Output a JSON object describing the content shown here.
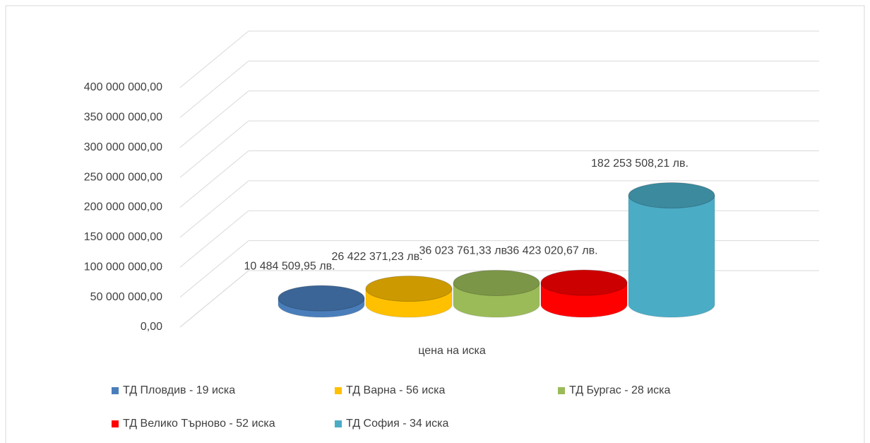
{
  "chart_data": {
    "type": "bar3d",
    "categories": [
      "цена на иска"
    ],
    "series": [
      {
        "name": "ТД Пловдив - 19 иска",
        "color": "#4a7ebb",
        "values": [
          10484509.95
        ],
        "value_labels": [
          "10 484 509,95 лв."
        ]
      },
      {
        "name": "ТД Варна - 56 иска",
        "color": "#ffc000",
        "values": [
          26422371.23
        ],
        "value_labels": [
          "26 422 371,23 лв."
        ]
      },
      {
        "name": "ТД Бургас - 28 иска",
        "color": "#9bbb59",
        "values": [
          36023761.33
        ],
        "value_labels": [
          "36 023 761,33 лв."
        ]
      },
      {
        "name": "ТД Велико Търново - 52 иска",
        "color": "#ff0000",
        "values": [
          36423020.67
        ],
        "value_labels": [
          "36 423 020,67 лв."
        ]
      },
      {
        "name": "ТД София - 34 иска",
        "color": "#4bacc6",
        "values": [
          182253508.21
        ],
        "value_labels": [
          "182 253 508,21 лв."
        ]
      }
    ],
    "ylim": [
      0,
      400000000
    ],
    "yticks": [
      {
        "value": 0,
        "label": "0,00"
      },
      {
        "value": 50000000,
        "label": "50 000 000,00"
      },
      {
        "value": 100000000,
        "label": "100 000 000,00"
      },
      {
        "value": 150000000,
        "label": "150 000 000,00"
      },
      {
        "value": 200000000,
        "label": "200 000 000,00"
      },
      {
        "value": 250000000,
        "label": "250 000 000,00"
      },
      {
        "value": 300000000,
        "label": "300 000 000,00"
      },
      {
        "value": 350000000,
        "label": "350 000 000,00"
      },
      {
        "value": 400000000,
        "label": "400 000 000,00"
      }
    ],
    "grid": true
  }
}
